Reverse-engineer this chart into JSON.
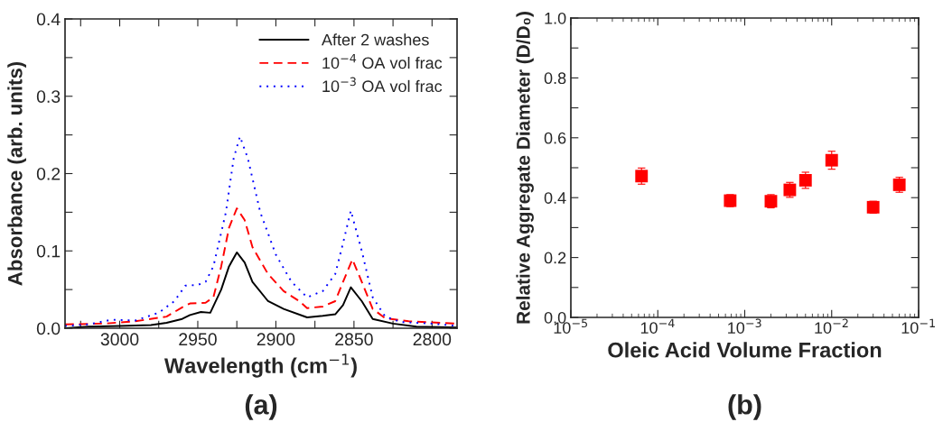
{
  "chart_data": [
    {
      "type": "line",
      "xlabel": "Wavelength (cm$^{−1}$)",
      "ylabel": "Absorbance (arb. units)",
      "annotations": [
        "(a)"
      ],
      "xlim": [
        3035,
        2784
      ],
      "ylim": [
        0,
        0.4
      ],
      "xticks": [
        {
          "value": 3025,
          "label": null
        },
        3000,
        {
          "value": 2975,
          "label": null
        },
        2950,
        {
          "value": 2925,
          "label": null
        },
        2900,
        {
          "value": 2875,
          "label": null
        },
        2850,
        {
          "value": 2825,
          "label": null
        },
        2800
      ],
      "yticks": [
        {
          "value": 0.0,
          "label": "0.0"
        },
        {
          "value": 0.05,
          "label": null
        },
        0.1,
        {
          "value": 0.15,
          "label": null
        },
        0.2,
        {
          "value": 0.25,
          "label": null
        },
        0.3,
        {
          "value": 0.35,
          "label": null
        },
        0.4
      ],
      "legend": "top right",
      "grid": false,
      "series": [
        {
          "name": "After 2 washes",
          "color": "#000000",
          "line_style": "solid",
          "x": [
            3035,
            3020,
            3000,
            2980,
            2970,
            2960,
            2955,
            2948,
            2942,
            2935,
            2930,
            2925,
            2920,
            2915,
            2905,
            2895,
            2880,
            2870,
            2862,
            2857,
            2852,
            2845,
            2838,
            2825,
            2810,
            2784
          ],
          "values": [
            0.0,
            0.002,
            0.003,
            0.004,
            0.007,
            0.012,
            0.017,
            0.021,
            0.02,
            0.05,
            0.08,
            0.098,
            0.085,
            0.06,
            0.035,
            0.025,
            0.014,
            0.016,
            0.018,
            0.03,
            0.053,
            0.035,
            0.012,
            0.006,
            0.002,
            0.001
          ]
        },
        {
          "name": "10$^{−4}$ OA vol frac",
          "color": "#ff0000",
          "line_style": "dashed",
          "x": [
            3035,
            3010,
            2990,
            2970,
            2960,
            2955,
            2945,
            2940,
            2935,
            2930,
            2925,
            2920,
            2915,
            2905,
            2895,
            2885,
            2880,
            2870,
            2862,
            2857,
            2851,
            2845,
            2838,
            2830,
            2815,
            2784
          ],
          "values": [
            0.005,
            0.006,
            0.009,
            0.015,
            0.027,
            0.032,
            0.033,
            0.04,
            0.08,
            0.13,
            0.155,
            0.14,
            0.105,
            0.07,
            0.048,
            0.035,
            0.026,
            0.028,
            0.035,
            0.06,
            0.089,
            0.06,
            0.025,
            0.013,
            0.009,
            0.006
          ]
        },
        {
          "name": "10$^{−3}$ OA vol frac",
          "color": "#0000ff",
          "line_style": "dotted",
          "x": [
            3035,
            3020,
            3005,
            2990,
            2975,
            2965,
            2958,
            2950,
            2945,
            2940,
            2932,
            2927,
            2923,
            2918,
            2910,
            2900,
            2890,
            2880,
            2870,
            2862,
            2857,
            2852,
            2845,
            2838,
            2830,
            2820,
            2800,
            2784
          ],
          "values": [
            0.003,
            0.005,
            0.011,
            0.01,
            0.02,
            0.035,
            0.055,
            0.056,
            0.06,
            0.08,
            0.15,
            0.22,
            0.248,
            0.22,
            0.15,
            0.095,
            0.06,
            0.04,
            0.048,
            0.07,
            0.11,
            0.152,
            0.1,
            0.04,
            0.015,
            0.008,
            0.006,
            0.003
          ]
        }
      ]
    },
    {
      "type": "scatter",
      "xlabel": "Oleic Acid Volume Fraction",
      "ylabel": "Relative Aggregate Diameter (D/D₀)",
      "annotations": [
        "(b)"
      ],
      "log": "x",
      "xlim": [
        1e-05,
        0.1
      ],
      "ylim": [
        0,
        1.0
      ],
      "xticks": [
        {
          "value": 1e-05,
          "label": "10$^{−5}$"
        },
        {
          "value": 0.0001,
          "label": "10$^{−4}$"
        },
        {
          "value": 0.001,
          "label": "10$^{−3}$"
        },
        {
          "value": 0.01,
          "label": "10$^{−2}$"
        },
        {
          "value": 0.1,
          "label": "10$^{−1}$"
        }
      ],
      "yticks": [
        {
          "value": 0.0,
          "label": "0.0"
        },
        {
          "value": 0.1,
          "label": null
        },
        0.2,
        {
          "value": 0.3,
          "label": null
        },
        0.4,
        {
          "value": 0.5,
          "label": null
        },
        0.6,
        {
          "value": 0.7,
          "label": null
        },
        0.8,
        {
          "value": 0.9,
          "label": null
        },
        {
          "value": 1.0,
          "label": "1.0"
        }
      ],
      "marker": "square",
      "grid": false,
      "series": [
        {
          "color": "#ff0000",
          "x": [
            6.5e-05,
            0.00068,
            0.002,
            0.0033,
            0.005,
            0.01,
            0.03,
            0.06
          ],
          "values": [
            0.472,
            0.39,
            0.388,
            0.426,
            0.458,
            0.525,
            0.368,
            0.443
          ],
          "errors": [
            0.027,
            0.02,
            0.022,
            0.025,
            0.027,
            0.03,
            0.02,
            0.025
          ]
        }
      ]
    }
  ]
}
